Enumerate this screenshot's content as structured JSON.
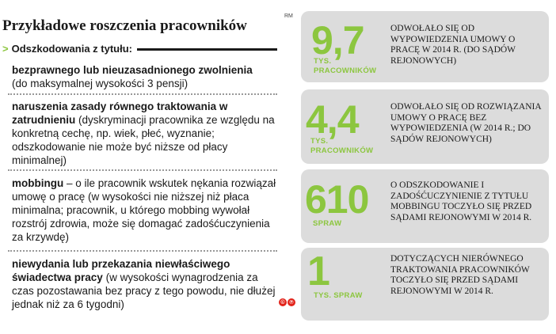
{
  "header": {
    "title": "Przykładowe roszczenia pracowników",
    "subtitle_marker": ">",
    "subtitle": "Odszkodowania z tytułu:",
    "rm": "RM"
  },
  "items": [
    {
      "bold": "bezprawnego lub nieuzasadnionego zwolnienia",
      "text": "(do maksymalnej wysokości 3 pensji)"
    },
    {
      "bold": "naruszenia zasady równego traktowania w zatrudnieniu",
      "text": "(dyskryminacji pracownika ze względu na konkretną cechę, np. wiek, płeć, wyznanie; odszkodowanie nie może być niższe od płacy minimalnej)"
    },
    {
      "bold": "mobbingu",
      "text": "– o ile pracownik wskutek nękania rozwiązał umowę o pracę (w wysokości nie niższej niż płaca minimalna; pracownik, u którego mobbing wywołał rozstrój zdrowia, może się domagać zadośćuczynienia za krzywdę)"
    },
    {
      "bold": "niewydania lub przekazania niewłaściwego świadectwa pracy",
      "text": "(w wysokości wynagrodzenia za czas pozostawania bez pracy z tego powodu, nie dłużej jednak niż za 6 tygodni)"
    }
  ],
  "stats": [
    {
      "value": "9,7",
      "unit_line1": "TYS.",
      "unit_line2": "PRACOWNIKÓW",
      "description": "Odwołało się od wypowiedzenia umowy o pracę w 2014 r. (do sądów rejonowych)"
    },
    {
      "value": "4,4",
      "unit_line1": "TYS.",
      "unit_line2": "PRACOWNIKÓW",
      "description": "Odwołało się od rozwiązania umowy o pracę bez wypowiedzenia (w 2014 r.; do sądów rejonowych)"
    },
    {
      "value": "610",
      "unit_line1": "SPRAW",
      "unit_line2": "",
      "description": "O odszkodowanie i zadośćuczynienie z tytułu mobbingu toczyło się przed sądami rejonowymi w 2014 r."
    },
    {
      "value": "1",
      "unit_line1": "TYS. SPRAW",
      "unit_line2": "",
      "description": "Dotyczących nierównego traktowania pracowników toczyło się przed sądami rejonowymi w 2014 r."
    }
  ],
  "copyright": [
    "©",
    "℗"
  ],
  "colors": {
    "accent": "#8cc63f",
    "card": "#dcdcdc",
    "copyright": "#e2231a"
  }
}
